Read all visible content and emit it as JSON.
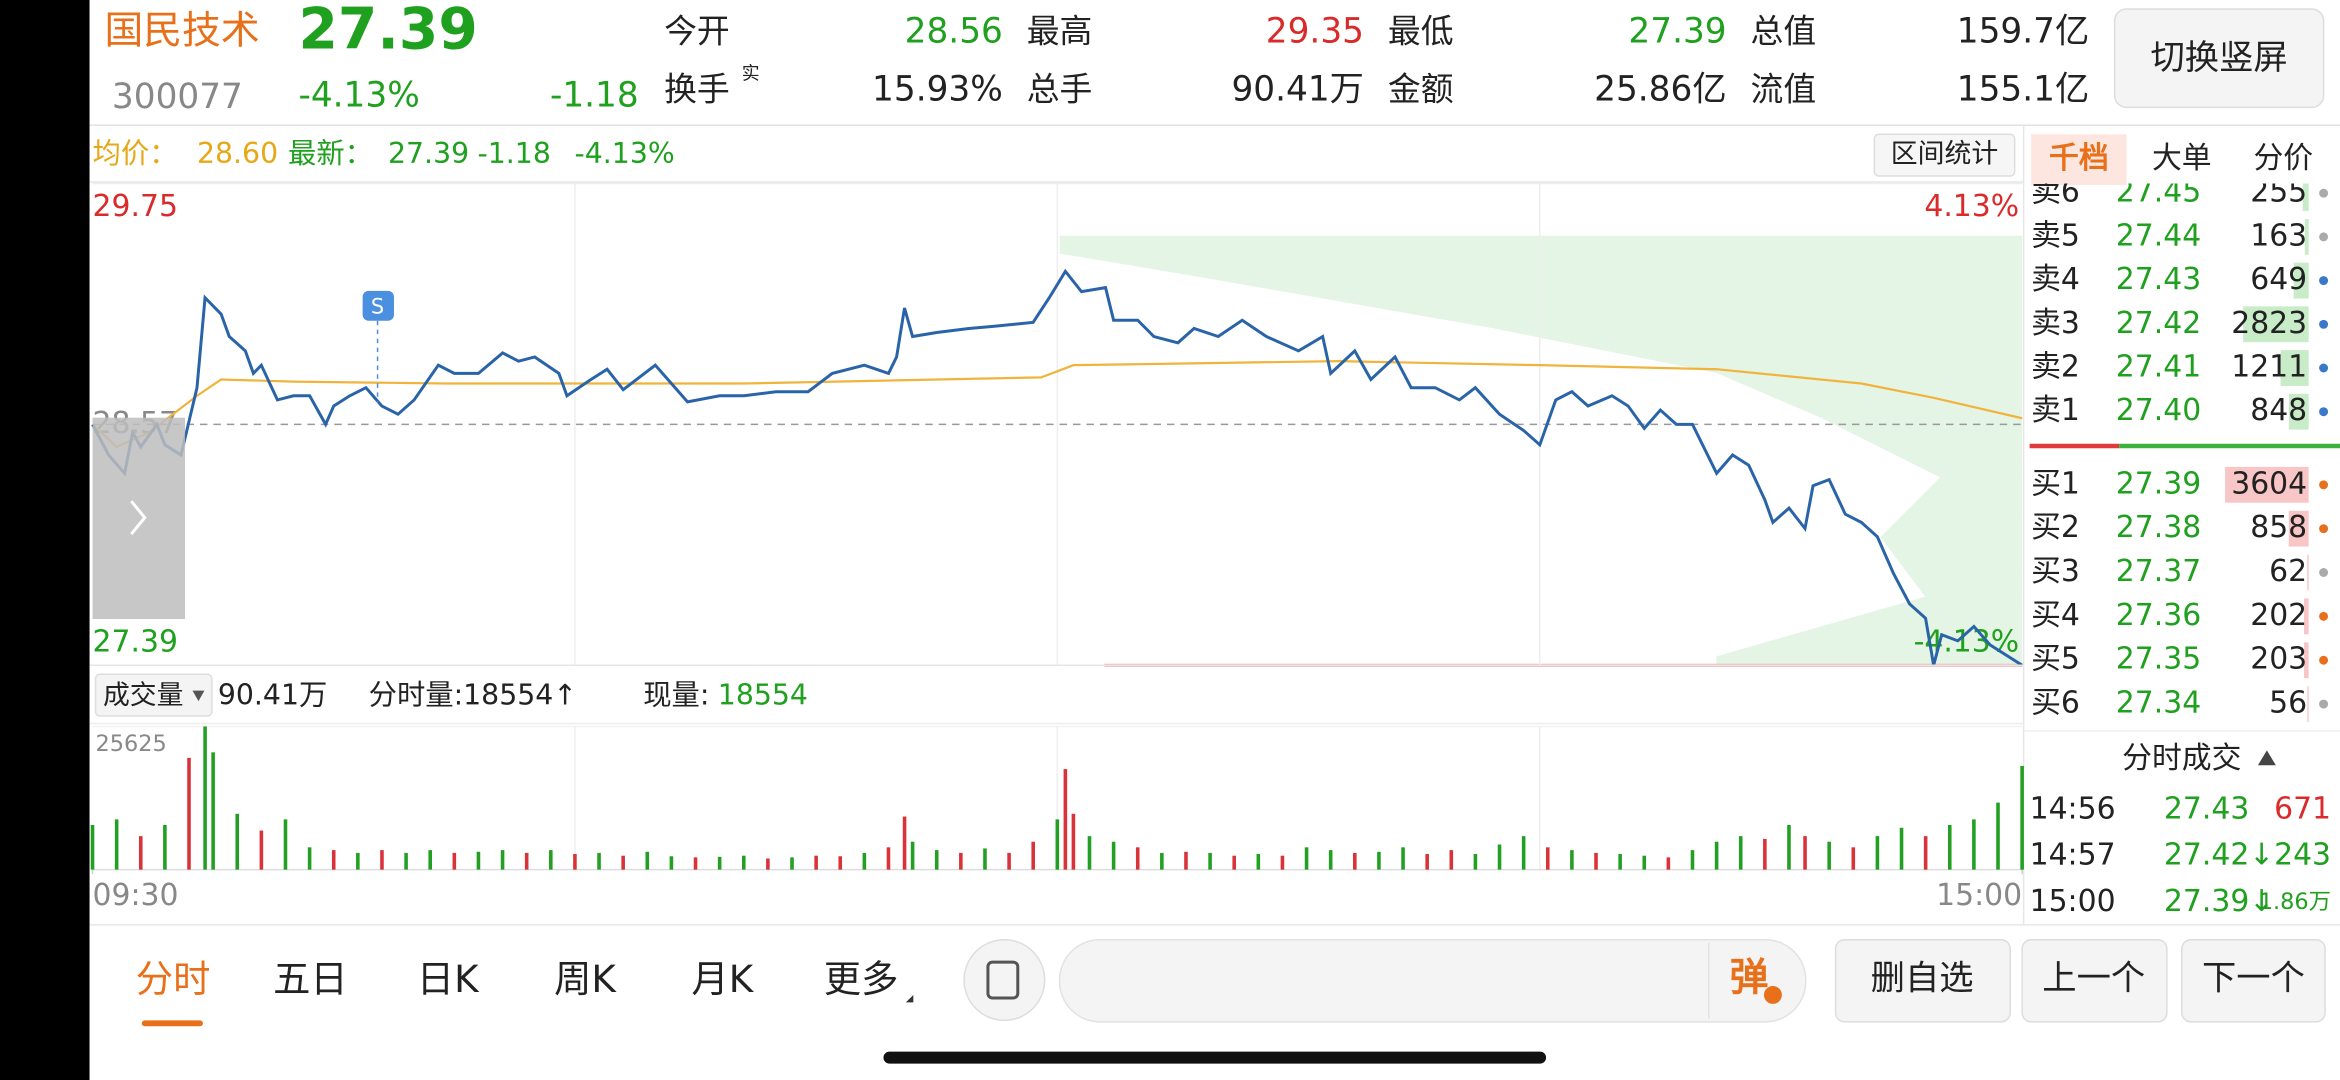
{
  "header": {
    "name": "国民技术",
    "price": "27.39",
    "code": "300077",
    "change_pct": "-4.13%",
    "change": "-1.18",
    "toggle_button": "切换竖屏"
  },
  "quote": {
    "rows": [
      [
        [
          "今开",
          "28.56"
        ],
        [
          "最高",
          "29.35"
        ],
        [
          "最低",
          "27.39"
        ],
        [
          "总值",
          "159.7亿"
        ]
      ],
      [
        [
          "换手",
          "15.93%"
        ],
        [
          "总手",
          "90.41万"
        ],
        [
          "金额",
          "25.86亿"
        ],
        [
          "流值",
          "155.1亿"
        ]
      ]
    ],
    "turnover_note": "实"
  },
  "summary": {
    "avg_label": "均价：",
    "avg": "28.60",
    "latest_label": "最新：",
    "latest": "27.39",
    "change": "-1.18",
    "change_pct": "-4.13%",
    "range_button": "区间统计"
  },
  "tabs": [
    "千档",
    "大单",
    "分价"
  ],
  "order_book": {
    "asks": [
      {
        "label": "卖6",
        "price": "27.45",
        "volume": 255,
        "dot": "#aaaaaa"
      },
      {
        "label": "卖5",
        "price": "27.44",
        "volume": 163,
        "dot": "#aaaaaa"
      },
      {
        "label": "卖4",
        "price": "27.43",
        "volume": 649,
        "dot": "#3a78c9"
      },
      {
        "label": "卖3",
        "price": "27.42",
        "volume": 2823,
        "dot": "#3a78c9"
      },
      {
        "label": "卖2",
        "price": "27.41",
        "volume": 1211,
        "dot": "#3a78c9"
      },
      {
        "label": "卖1",
        "price": "27.40",
        "volume": 848,
        "dot": "#3a78c9"
      }
    ],
    "bids": [
      {
        "label": "买1",
        "price": "27.39",
        "volume": 3604,
        "dot": "#e8701a"
      },
      {
        "label": "买2",
        "price": "27.38",
        "volume": 858,
        "dot": "#e8701a"
      },
      {
        "label": "买3",
        "price": "27.37",
        "volume": 62,
        "dot": "#aaaaaa"
      },
      {
        "label": "买4",
        "price": "27.36",
        "volume": 202,
        "dot": "#e8701a"
      },
      {
        "label": "买5",
        "price": "27.35",
        "volume": 203,
        "dot": "#e8701a"
      },
      {
        "label": "买6",
        "price": "27.34",
        "volume": 56,
        "dot": "#aaaaaa"
      }
    ]
  },
  "trades": {
    "title": "分时成交",
    "rows": [
      [
        "14:56",
        "27.43",
        "671"
      ],
      [
        "14:57",
        "27.42↓",
        "243"
      ],
      [
        "15:00",
        "27.39↓",
        "1.86万"
      ]
    ]
  },
  "volume_header": {
    "selector": "成交量",
    "total": "90.41万",
    "period_volume": "分时量:18554↑",
    "current_label": "现量:",
    "current": "18554"
  },
  "bottom_bar": {
    "tabs": [
      "分时",
      "五日",
      "日K",
      "周K",
      "月K",
      "更多"
    ],
    "danmu": "弹",
    "buttons": [
      "删自选",
      "上一个",
      "下一个"
    ]
  },
  "chart_data": [
    {
      "type": "line",
      "xlim": [
        0,
        240
      ],
      "ylim": [
        27.39,
        29.75
      ],
      "yticks": [
        27.39,
        28.57,
        29.75
      ],
      "y2lim": [
        -4.13,
        4.13
      ],
      "y2ticks": [
        {
          "value": 4.13,
          "label": "4.13%"
        },
        {
          "value": -4.13,
          "label": "-4.13%"
        }
      ],
      "series": [
        {
          "color": "#2a64a8",
          "x": [
            0,
            2,
            4,
            5,
            6,
            8,
            9,
            11,
            13,
            14,
            16,
            17,
            19,
            20,
            21,
            23,
            25,
            27,
            29,
            30,
            32,
            34,
            36,
            38,
            40,
            43,
            45,
            48,
            51,
            53,
            55,
            58,
            59,
            62,
            64,
            66,
            70,
            74,
            78,
            81,
            85,
            89,
            92,
            96,
            99,
            100,
            101,
            102,
            105,
            109,
            112,
            117,
            119,
            121,
            123,
            126,
            127,
            130,
            132,
            135,
            137,
            140,
            143,
            146,
            150,
            153,
            154,
            157,
            159,
            162,
            164,
            167,
            170,
            172,
            175,
            178,
            180,
            182,
            184,
            186,
            189,
            191,
            193,
            195,
            197,
            199,
            202,
            204,
            206,
            208,
            209,
            211,
            213,
            214,
            216,
            218,
            220,
            222,
            224,
            226,
            228,
            229,
            230,
            232,
            234,
            236,
            240
          ],
          "values": [
            28.57,
            28.42,
            28.33,
            28.53,
            28.46,
            28.57,
            28.47,
            28.42,
            28.75,
            29.19,
            29.11,
            29.0,
            28.93,
            28.82,
            28.86,
            28.69,
            28.71,
            28.71,
            28.57,
            28.66,
            28.71,
            28.75,
            28.66,
            28.62,
            28.69,
            28.86,
            28.82,
            28.82,
            28.92,
            28.88,
            28.9,
            28.82,
            28.71,
            28.79,
            28.84,
            28.74,
            28.86,
            28.68,
            28.71,
            28.71,
            28.73,
            28.73,
            28.82,
            28.86,
            28.82,
            28.9,
            29.14,
            29.0,
            29.02,
            29.04,
            29.05,
            29.07,
            29.19,
            29.32,
            29.22,
            29.24,
            29.08,
            29.08,
            29.0,
            28.97,
            29.04,
            29.0,
            29.08,
            29.0,
            28.93,
            29.0,
            28.82,
            28.93,
            28.79,
            28.9,
            28.75,
            28.75,
            28.69,
            28.75,
            28.62,
            28.54,
            28.47,
            28.69,
            28.73,
            28.66,
            28.71,
            28.66,
            28.55,
            28.64,
            28.57,
            28.57,
            28.33,
            28.42,
            28.37,
            28.2,
            28.09,
            28.16,
            28.06,
            28.27,
            28.3,
            28.13,
            28.09,
            28.02,
            27.84,
            27.69,
            27.62,
            27.39,
            27.54,
            27.51,
            27.58,
            27.49,
            27.39
          ]
        },
        {
          "color": "#f0b43c",
          "x": [
            0,
            3,
            7,
            13,
            16,
            25,
            44,
            81,
            118,
            122,
            155,
            180,
            202,
            220,
            229,
            240
          ],
          "values": [
            28.57,
            28.46,
            28.53,
            28.71,
            28.79,
            28.78,
            28.77,
            28.77,
            28.8,
            28.86,
            28.88,
            28.86,
            28.84,
            28.77,
            28.7,
            28.6
          ]
        }
      ]
    },
    {
      "type": "bar",
      "xlim": [
        0,
        240
      ],
      "ylim": [
        0,
        25625
      ],
      "yticks": [
        25625
      ],
      "xticks": [
        {
          "value": 0,
          "label": "09:30"
        },
        {
          "value": 240,
          "label": "15:00"
        }
      ],
      "series": [
        {
          "color": "#d9333a",
          "x": [
            6,
            12,
            21,
            30,
            36,
            45,
            54,
            60,
            66,
            75,
            84,
            90,
            93,
            99,
            101,
            108,
            114,
            117,
            121,
            122,
            130,
            136,
            142,
            148,
            157,
            166,
            169,
            181,
            187,
            196,
            208,
            213,
            219,
            228
          ],
          "values": [
            6000,
            20000,
            7000,
            3500,
            3500,
            3000,
            3000,
            2800,
            2500,
            2200,
            2000,
            2500,
            2400,
            4000,
            9500,
            3000,
            3000,
            5000,
            18000,
            10000,
            4000,
            3200,
            2500,
            2500,
            3000,
            2800,
            3500,
            4000,
            3000,
            2200,
            5500,
            6000,
            4000,
            6000
          ]
        },
        {
          "color": "#23a023",
          "x": [
            0,
            3,
            9,
            14,
            15,
            18,
            24,
            27,
            33,
            39,
            42,
            48,
            51,
            57,
            63,
            69,
            72,
            78,
            81,
            87,
            96,
            102,
            105,
            111,
            120,
            124,
            127,
            133,
            139,
            145,
            151,
            154,
            160,
            163,
            172,
            175,
            178,
            184,
            190,
            193,
            199,
            202,
            205,
            211,
            216,
            222,
            225,
            231,
            234,
            237,
            240
          ],
          "values": [
            8000,
            9000,
            8000,
            25625,
            21000,
            10000,
            9000,
            4000,
            3000,
            3000,
            3500,
            3200,
            3500,
            3500,
            3000,
            3200,
            2400,
            2300,
            2500,
            2200,
            3000,
            5000,
            3500,
            3800,
            9000,
            6000,
            5000,
            3000,
            3000,
            2800,
            4000,
            3500,
            3200,
            4000,
            2800,
            4500,
            6000,
            3500,
            2800,
            2500,
            3500,
            5000,
            6000,
            8000,
            5000,
            6000,
            7500,
            8000,
            9000,
            12000,
            18554
          ]
        }
      ]
    }
  ]
}
